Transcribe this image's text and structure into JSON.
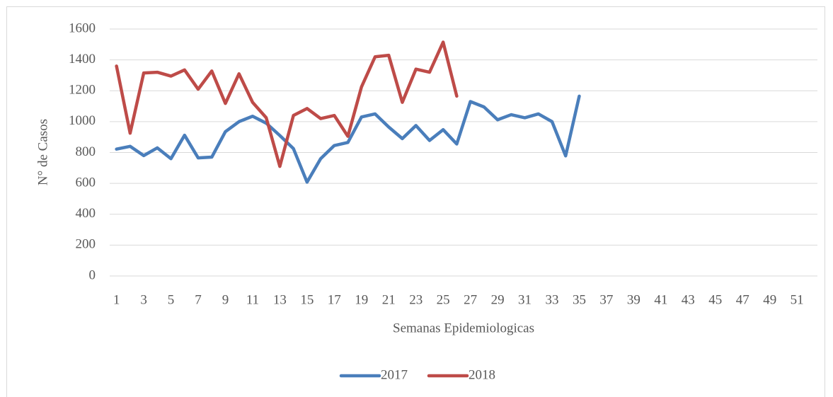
{
  "chart_data": {
    "type": "line",
    "x_label": "Semanas Epidemiologicas",
    "y_label": "N° de Casos",
    "categories": [
      1,
      null,
      3,
      null,
      5,
      null,
      7,
      null,
      9,
      null,
      11,
      null,
      13,
      null,
      15,
      null,
      17,
      null,
      19,
      null,
      21,
      null,
      23,
      null,
      25,
      null,
      27,
      null,
      29,
      null,
      31,
      null,
      33,
      null,
      35,
      null,
      37,
      null,
      39,
      null,
      41,
      null,
      43,
      null,
      45,
      null,
      47,
      null,
      49,
      null,
      51,
      null
    ],
    "series": [
      {
        "name": "2017",
        "color": "#4a7ebb",
        "values": [
          822,
          840,
          780,
          830,
          760,
          912,
          765,
          770,
          935,
          1000,
          1035,
          990,
          910,
          825,
          608,
          760,
          845,
          865,
          1030,
          1050,
          965,
          890,
          975,
          878,
          948,
          855,
          1130,
          1095,
          1012,
          1045,
          1025,
          1050,
          1000,
          778,
          1165,
          null,
          null,
          null,
          null,
          null,
          null,
          null,
          null,
          null,
          null,
          null,
          null,
          null,
          null,
          null,
          null,
          null
        ]
      },
      {
        "name": "2018",
        "color": "#be4b48",
        "values": [
          1360,
          925,
          1315,
          1320,
          1295,
          1335,
          1210,
          1328,
          1118,
          1310,
          1125,
          1025,
          710,
          1040,
          1085,
          1020,
          1040,
          905,
          1225,
          1420,
          1430,
          1125,
          1340,
          1320,
          1515,
          1165,
          null,
          null,
          null,
          null,
          null,
          null,
          null,
          null,
          null,
          null,
          null,
          null,
          null,
          null,
          null,
          null,
          null,
          null,
          null,
          null,
          null,
          null,
          null,
          null,
          null,
          null
        ]
      }
    ],
    "ylim": [
      0,
      1600
    ],
    "yticks": [
      0,
      200,
      400,
      600,
      800,
      1000,
      1200,
      1400,
      1600
    ],
    "grid": true,
    "legend": "bottom"
  }
}
